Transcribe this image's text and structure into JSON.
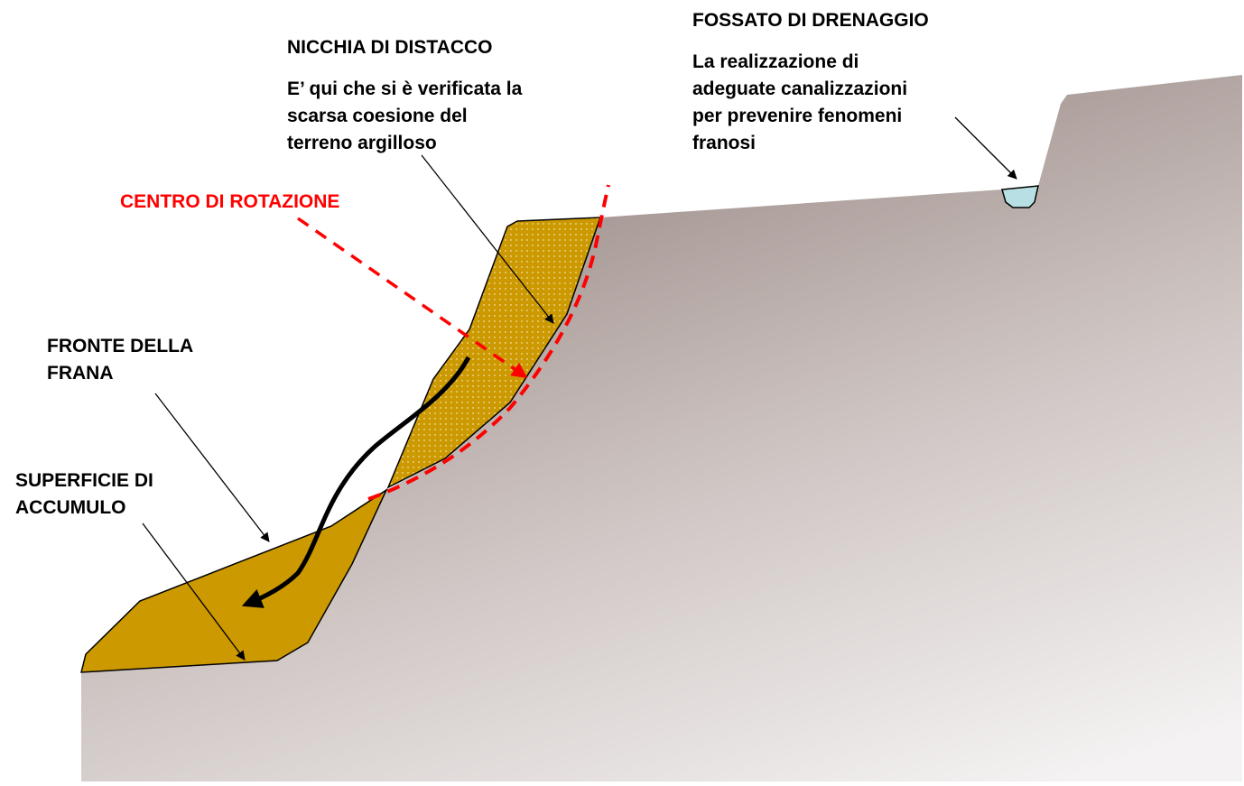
{
  "labels": {
    "nicchia_title": "NICCHIA DI DISTACCO",
    "nicchia_desc": [
      "E’ qui che si è verificata la",
      "scarsa coesione del",
      "terreno argilloso"
    ],
    "centro": "CENTRO DI ROTAZIONE",
    "fronte": [
      "FRONTE DELLA",
      "FRANA"
    ],
    "superficie": [
      "SUPERFICIE DI",
      "ACCUMULO"
    ],
    "fossato_title": "FOSSATO DI DRENAGGIO",
    "fossato_desc": [
      "La realizzazione di",
      "adeguate canalizzazioni",
      "per prevenire fenomeni",
      "franosi"
    ]
  },
  "colors": {
    "landslide": "#cc9900",
    "ground_dark": "#9c8c88",
    "ground_light": "#f2f0f0",
    "ditch_water": "#b8e0e4",
    "rotation": "#ff0000"
  }
}
